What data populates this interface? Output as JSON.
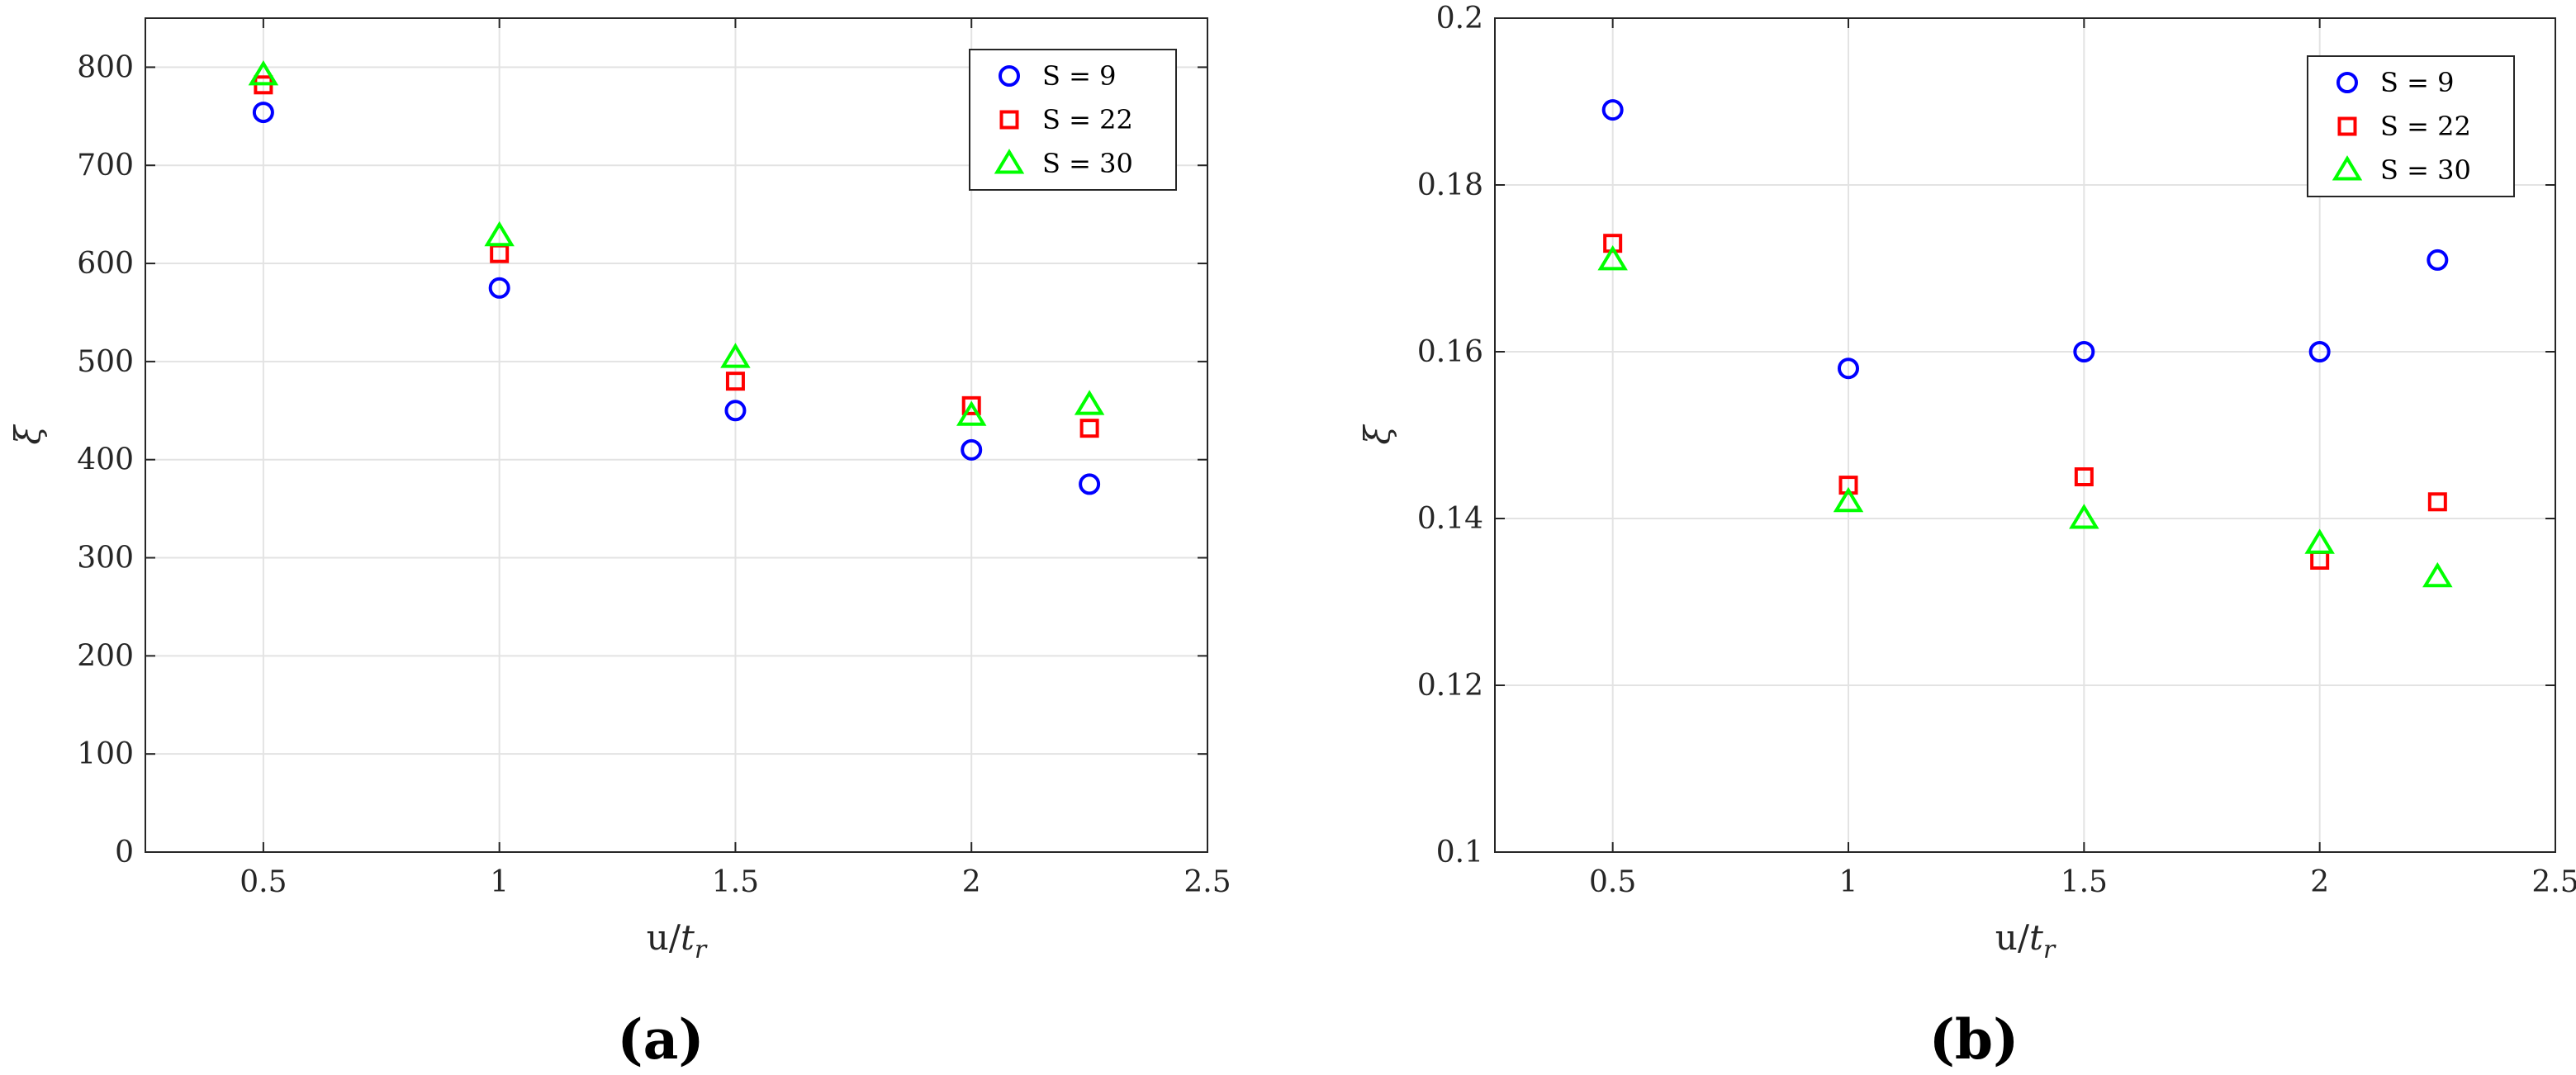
{
  "chart_data": [
    {
      "type": "scatter",
      "panel": "(a)",
      "xlabel": "u/t_r",
      "ylabel": "ξ",
      "xlim": [
        0.25,
        2.5
      ],
      "ylim": [
        0,
        850
      ],
      "xticks": [
        0.5,
        1,
        1.5,
        2,
        2.5
      ],
      "xtick_labels": [
        "0.5",
        "1",
        "1.5",
        "2",
        "2.5"
      ],
      "yticks": [
        0,
        100,
        200,
        300,
        400,
        500,
        600,
        700,
        800
      ],
      "ytick_labels": [
        "0",
        "100",
        "200",
        "300",
        "400",
        "500",
        "600",
        "700",
        "800"
      ],
      "grid": true,
      "legend_position": "top-right",
      "series": [
        {
          "name": "S = 9",
          "marker": "circle",
          "color": "#0000ff",
          "x": [
            0.5,
            1,
            1.5,
            2,
            2.25
          ],
          "y": [
            754,
            575,
            450,
            410,
            375
          ]
        },
        {
          "name": "S = 22",
          "marker": "square",
          "color": "#ff0000",
          "x": [
            0.5,
            1,
            1.5,
            2,
            2.25
          ],
          "y": [
            782,
            610,
            480,
            455,
            432
          ]
        },
        {
          "name": "S = 30",
          "marker": "triangle",
          "color": "#00ff00",
          "x": [
            0.5,
            1,
            1.5,
            2,
            2.25
          ],
          "y": [
            792,
            628,
            504,
            445,
            456
          ]
        }
      ]
    },
    {
      "type": "scatter",
      "panel": "(b)",
      "xlabel": "u/t_r",
      "ylabel": "ξ",
      "xlim": [
        0.25,
        2.5
      ],
      "ylim": [
        0.1,
        0.2
      ],
      "xticks": [
        0.5,
        1,
        1.5,
        2,
        2.5
      ],
      "xtick_labels": [
        "0.5",
        "1",
        "1.5",
        "2",
        "2.5"
      ],
      "yticks": [
        0.1,
        0.12,
        0.14,
        0.16,
        0.18,
        0.2
      ],
      "ytick_labels": [
        "0.1",
        "0.12",
        "0.14",
        "0.16",
        "0.18",
        "0.2"
      ],
      "grid": true,
      "legend_position": "top-right",
      "series": [
        {
          "name": "S = 9",
          "marker": "circle",
          "color": "#0000ff",
          "x": [
            0.5,
            1,
            1.5,
            2,
            2.25
          ],
          "y": [
            0.189,
            0.158,
            0.16,
            0.16,
            0.171
          ]
        },
        {
          "name": "S = 22",
          "marker": "square",
          "color": "#ff0000",
          "x": [
            0.5,
            1,
            1.5,
            2,
            2.25
          ],
          "y": [
            0.173,
            0.144,
            0.145,
            0.135,
            0.142
          ]
        },
        {
          "name": "S = 30",
          "marker": "triangle",
          "color": "#00ff00",
          "x": [
            0.5,
            1,
            1.5,
            2,
            2.25
          ],
          "y": [
            0.171,
            0.142,
            0.14,
            0.137,
            0.133
          ]
        }
      ]
    }
  ]
}
